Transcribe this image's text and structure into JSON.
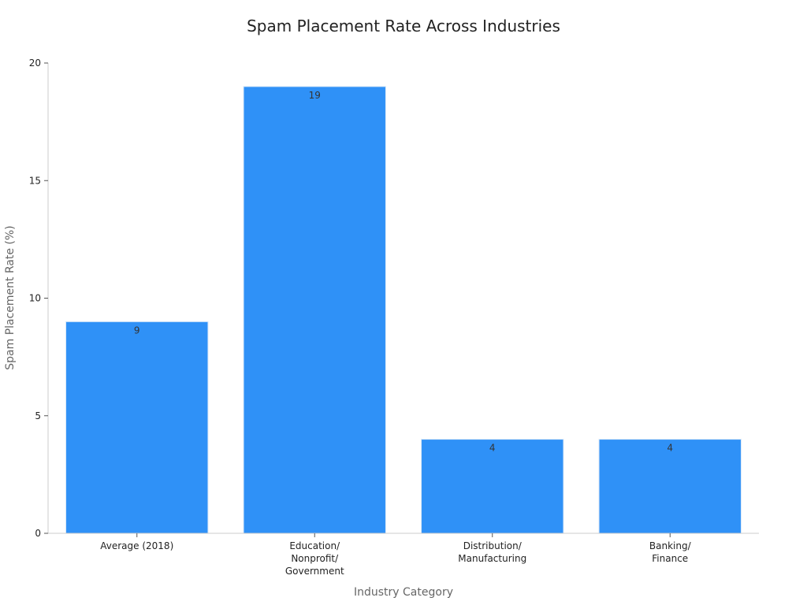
{
  "chart_data": {
    "type": "bar",
    "title": "Spam Placement Rate Across Industries",
    "xlabel": "Industry Category",
    "ylabel": "Spam Placement Rate (%)",
    "categories": [
      [
        "Average (2018)"
      ],
      [
        "Education/",
        "Nonprofit/",
        "Government"
      ],
      [
        "Distribution/",
        "Manufacturing"
      ],
      [
        "Banking/",
        "Finance"
      ]
    ],
    "values": [
      9,
      19,
      4,
      4
    ],
    "ylim": [
      0,
      20
    ],
    "yticks": [
      "0",
      "5",
      "10",
      "15",
      "20"
    ],
    "ytick_values": [
      0,
      5,
      10,
      15,
      20
    ],
    "data_labels": [
      "9",
      "19",
      "4",
      "4"
    ],
    "bar_color": "#2f91f7",
    "grid": false,
    "legend": "none"
  }
}
